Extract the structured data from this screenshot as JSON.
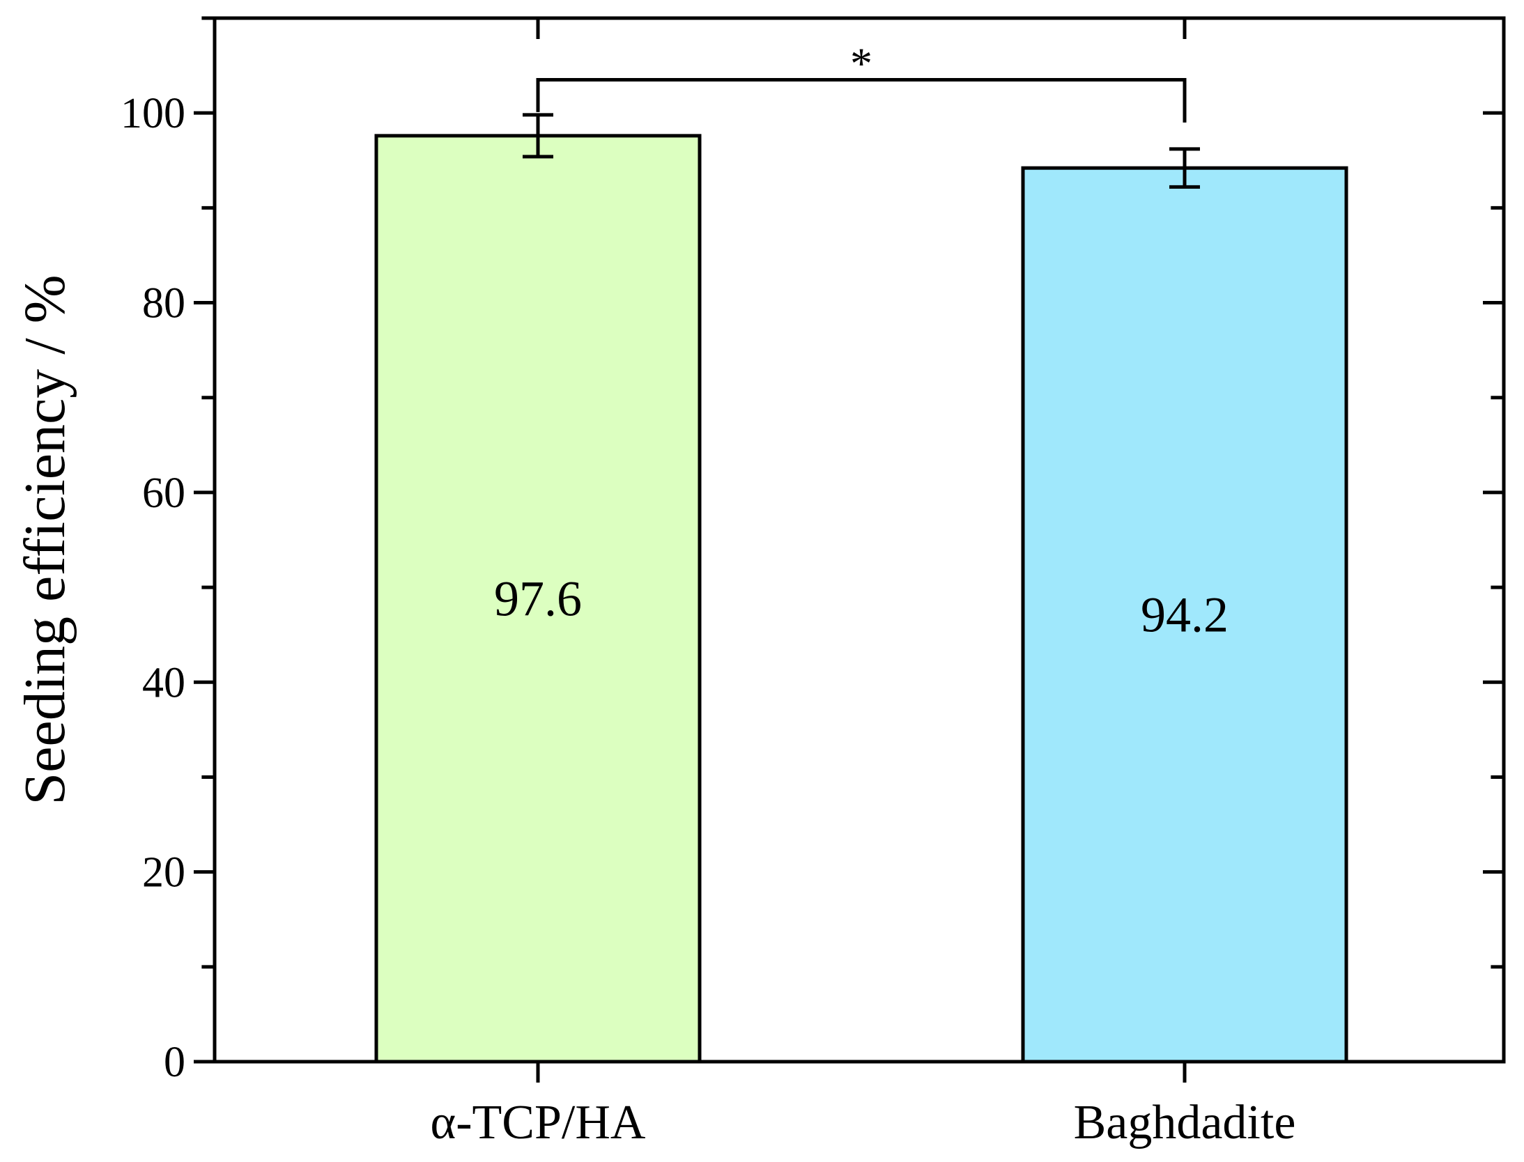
{
  "chart_data": {
    "type": "bar",
    "categories": [
      "α-TCP/HA",
      "Baghdadite"
    ],
    "values": [
      97.6,
      94.2
    ],
    "errors": [
      2.2,
      2.0
    ],
    "data_labels": [
      "97.6",
      "94.2"
    ],
    "bar_colors": [
      "#dcffc0",
      "#a0e8fc"
    ],
    "ylabel": "Seeding efficiency / %",
    "xlabel": "",
    "ylim": [
      0,
      110
    ],
    "yticks": [
      0,
      20,
      40,
      60,
      80,
      100
    ],
    "ytick_labels": [
      "0",
      "20",
      "40",
      "60",
      "80",
      "100"
    ],
    "minor_ytick_step": 10,
    "grid": false,
    "legend": "none",
    "significance": {
      "pair": [
        0,
        1
      ],
      "label": "*",
      "level": 103.5
    }
  }
}
